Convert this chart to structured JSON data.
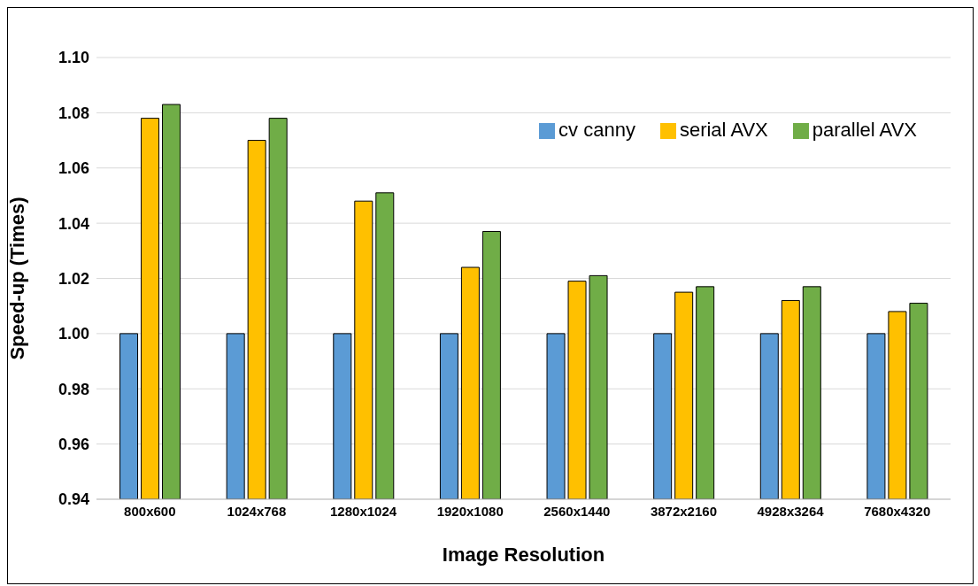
{
  "chart_data": {
    "type": "bar",
    "xlabel": "Image Resolution",
    "ylabel": "Speed-up (Times)",
    "categories": [
      "800x600",
      "1024x768",
      "1280x1024",
      "1920x1080",
      "2560x1440",
      "3872x2160",
      "4928x3264",
      "7680x4320"
    ],
    "series": [
      {
        "name": "cv canny",
        "color": "#5b9bd5",
        "values": [
          1.0,
          1.0,
          1.0,
          1.0,
          1.0,
          1.0,
          1.0,
          1.0
        ]
      },
      {
        "name": "serial AVX",
        "color": "#ffc000",
        "values": [
          1.078,
          1.07,
          1.048,
          1.024,
          1.019,
          1.015,
          1.012,
          1.008
        ]
      },
      {
        "name": "parallel AVX",
        "color": "#70ad47",
        "values": [
          1.083,
          1.078,
          1.051,
          1.037,
          1.021,
          1.017,
          1.017,
          1.011
        ]
      }
    ],
    "ylim": [
      0.94,
      1.1
    ],
    "yticks": [
      {
        "value": 0.94,
        "label": "0.94"
      },
      {
        "value": 0.96,
        "label": "0.96"
      },
      {
        "value": 0.98,
        "label": "0.98"
      },
      {
        "value": 1.0,
        "label": "1.00"
      },
      {
        "value": 1.02,
        "label": "1.02"
      },
      {
        "value": 1.04,
        "label": "1.04"
      },
      {
        "value": 1.06,
        "label": "1.06"
      },
      {
        "value": 1.08,
        "label": "1.08"
      },
      {
        "value": 1.1,
        "label": "1.10"
      }
    ],
    "grid": "y",
    "legend": "top right"
  }
}
